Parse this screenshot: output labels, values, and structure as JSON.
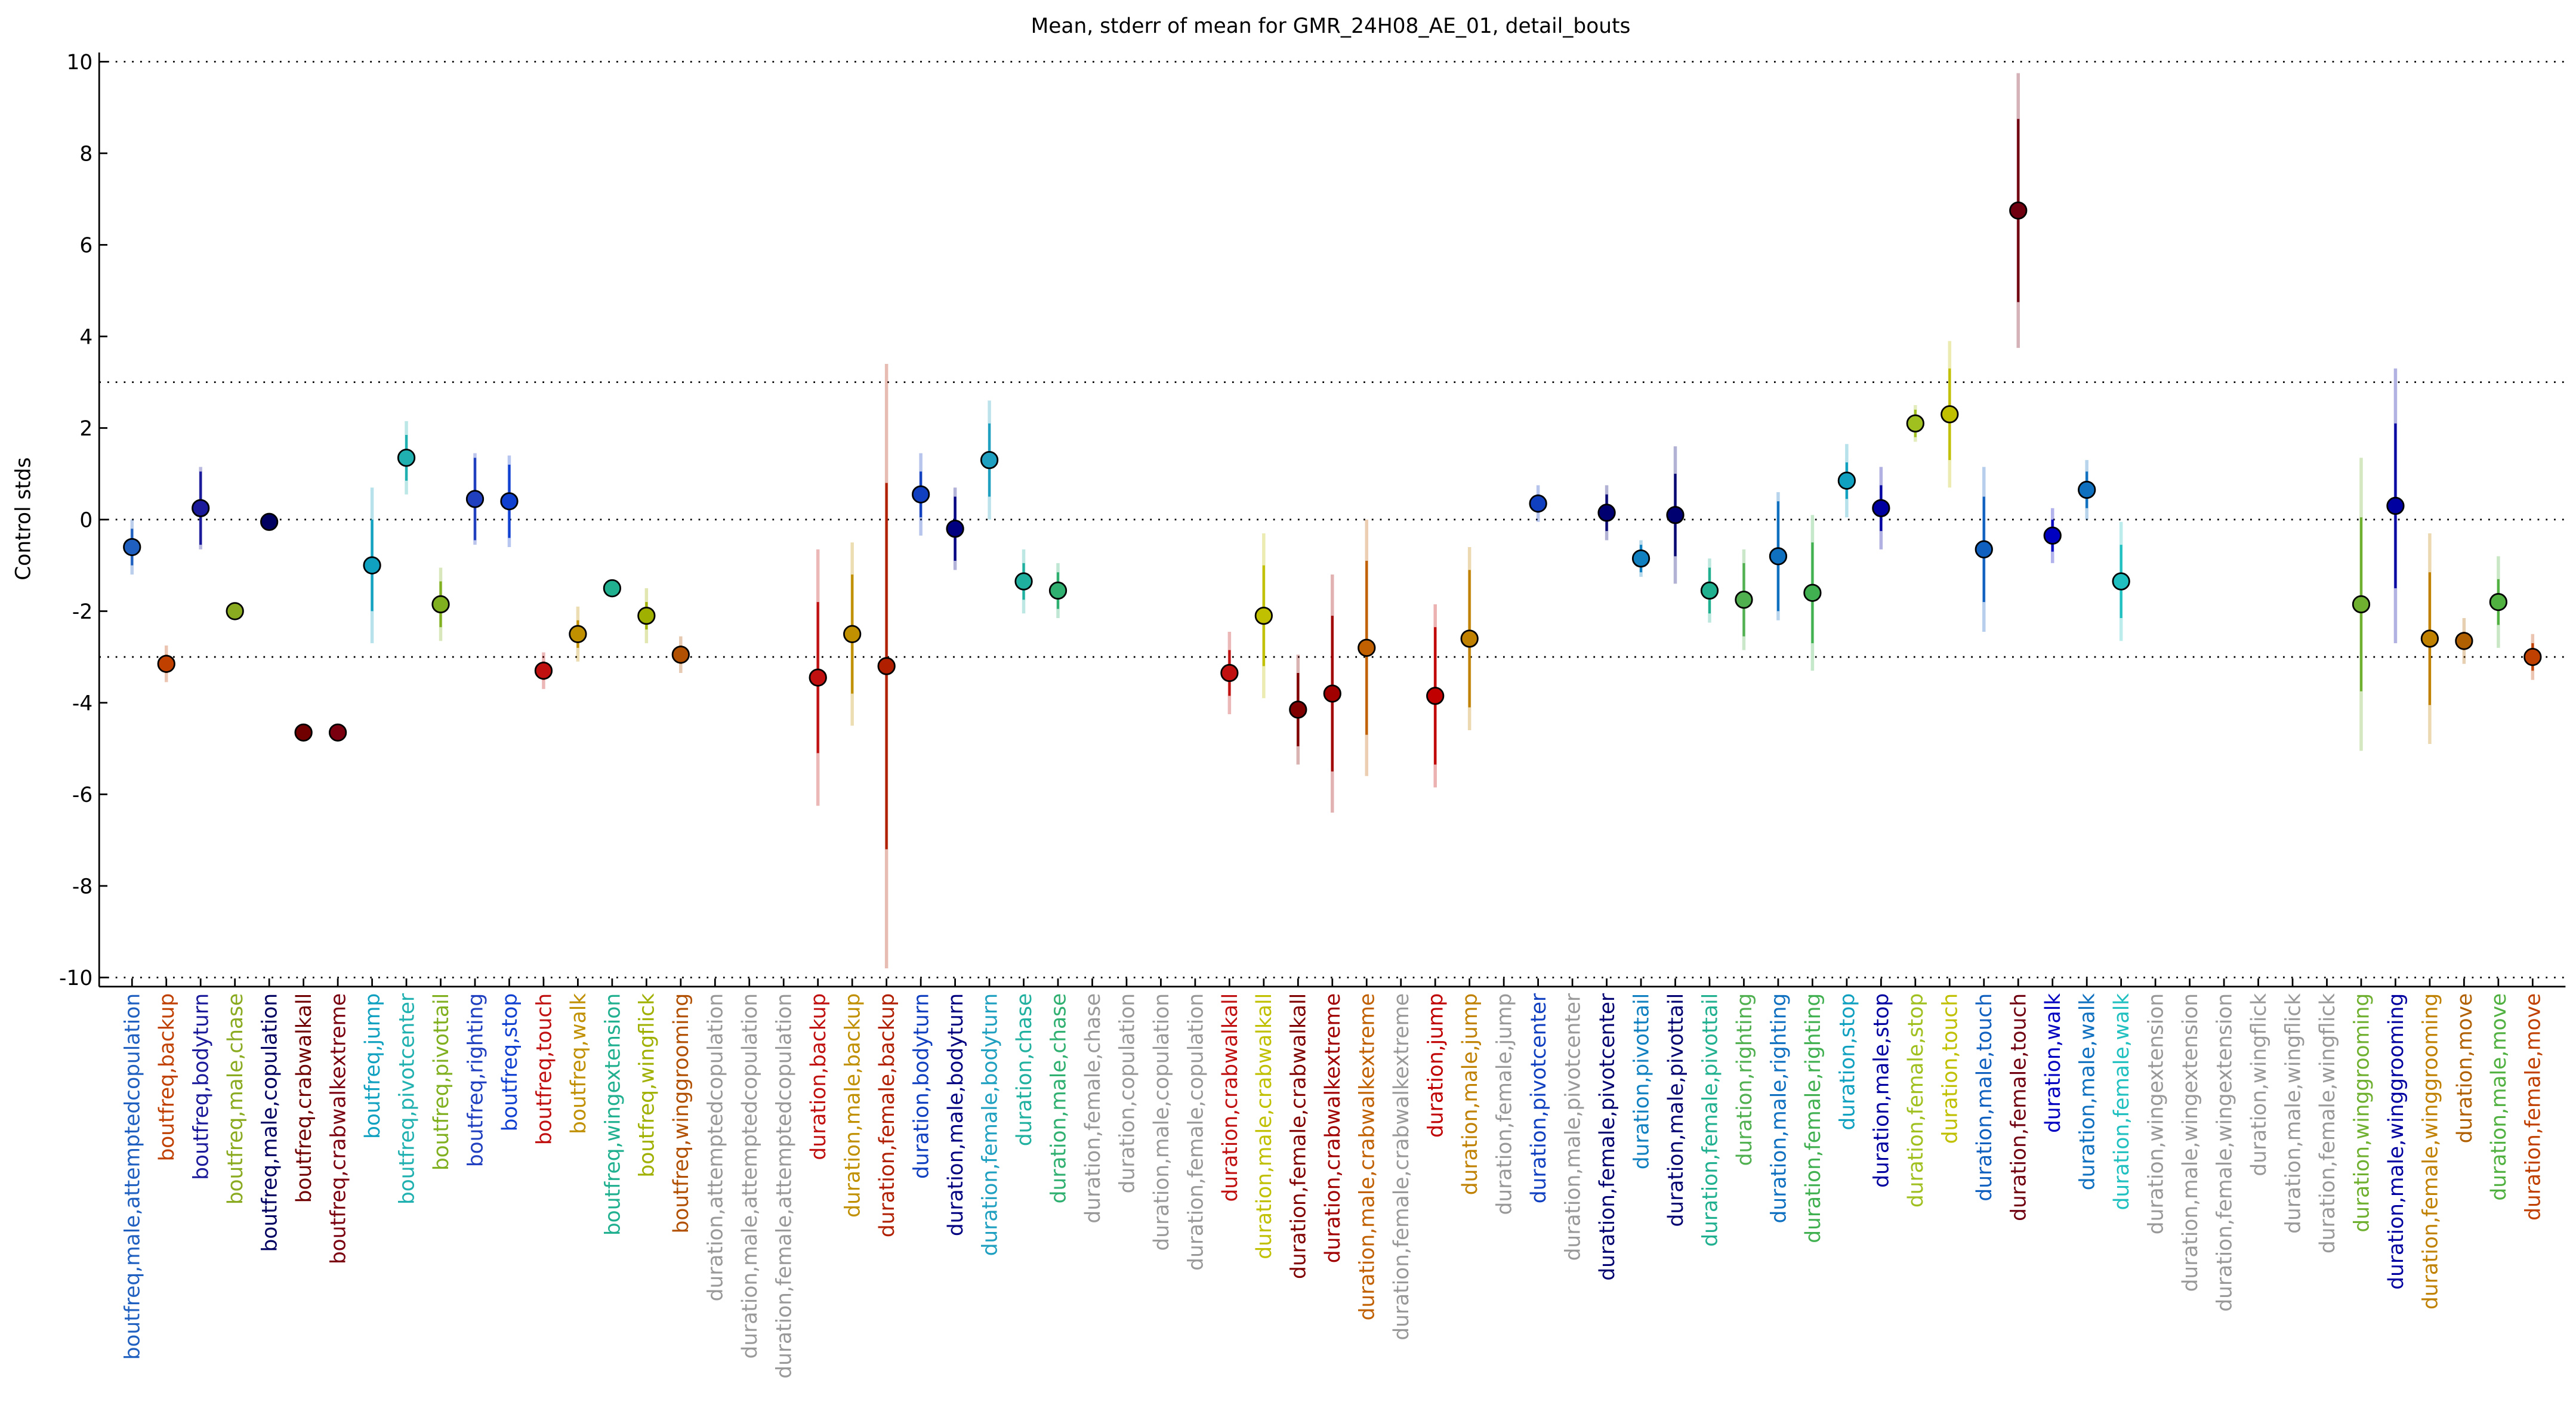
{
  "chart_data": {
    "type": "errorbar",
    "title": "Mean, stderr of mean for GMR_24H08_AE_01, detail_bouts",
    "y_label": "Control stds",
    "categories": [
      "boutfreq,male,attemptedcopulation",
      "boutfreq,backup",
      "boutfreq,bodyturn",
      "boutfreq,male,chase",
      "boutfreq,male,copulation",
      "boutfreq,crabwalkall",
      "boutfreq,crabwalkextreme",
      "boutfreq,jump",
      "boutfreq,pivotcenter",
      "boutfreq,pivottail",
      "boutfreq,righting",
      "boutfreq,stop",
      "boutfreq,touch",
      "boutfreq,walk",
      "boutfreq,wingextension",
      "boutfreq,wingflick",
      "boutfreq,winggrooming",
      "duration,attemptedcopulation",
      "duration,male,attemptedcopulation",
      "duration,female,attemptedcopulation",
      "duration,backup",
      "duration,male,backup",
      "duration,female,backup",
      "duration,bodyturn",
      "duration,male,bodyturn",
      "duration,female,bodyturn",
      "duration,chase",
      "duration,male,chase",
      "duration,female,chase",
      "duration,copulation",
      "duration,male,copulation",
      "duration,female,copulation",
      "duration,crabwalkall",
      "duration,male,crabwalkall",
      "duration,female,crabwalkall",
      "duration,crabwalkextreme",
      "duration,male,crabwalkextreme",
      "duration,female,crabwalkextreme",
      "duration,jump",
      "duration,male,jump",
      "duration,female,jump",
      "duration,pivotcenter",
      "duration,male,pivotcenter",
      "duration,female,pivotcenter",
      "duration,pivottail",
      "duration,male,pivottail",
      "duration,female,pivottail",
      "duration,righting",
      "duration,male,righting",
      "duration,female,righting",
      "duration,stop",
      "duration,male,stop",
      "duration,female,stop",
      "duration,touch",
      "duration,male,touch",
      "duration,female,touch",
      "duration,walk",
      "duration,male,walk",
      "duration,female,walk",
      "duration,wingextension",
      "duration,male,wingextension",
      "duration,female,wingextension",
      "duration,wingflick",
      "duration,male,wingflick",
      "duration,female,wingflick",
      "duration,winggrooming",
      "duration,male,winggrooming",
      "duration,female,winggrooming",
      "duration,move",
      "duration,male,move",
      "duration,female,move"
    ],
    "values": [
      -0.6,
      -3.15,
      0.25,
      -2.0,
      -0.05,
      -4.65,
      -4.65,
      -1.0,
      1.35,
      -1.85,
      0.45,
      0.4,
      -3.3,
      -2.5,
      -1.5,
      -2.1,
      -2.95,
      null,
      null,
      null,
      -3.45,
      -2.5,
      -3.2,
      0.55,
      -0.2,
      1.3,
      -1.35,
      -1.55,
      null,
      null,
      null,
      null,
      -3.35,
      -2.1,
      -4.15,
      -3.8,
      -2.8,
      null,
      -3.85,
      -2.6,
      null,
      0.35,
      null,
      0.15,
      -0.85,
      0.1,
      -1.55,
      -1.75,
      -0.8,
      -1.6,
      0.85,
      0.25,
      2.1,
      2.3,
      -0.65,
      6.75,
      -0.35,
      0.65,
      -1.35,
      null,
      null,
      null,
      null,
      null,
      null,
      -1.85,
      0.3,
      -2.6,
      -2.65,
      -1.8,
      -3.0
    ],
    "errors": [
      0.4,
      0.2,
      0.8,
      0.1,
      0.05,
      0.05,
      0.05,
      1.0,
      0.5,
      0.5,
      0.9,
      0.8,
      0.2,
      0.3,
      0.05,
      0.3,
      0.2,
      null,
      null,
      null,
      1.65,
      1.3,
      4.0,
      0.5,
      0.7,
      0.8,
      0.4,
      0.4,
      null,
      null,
      null,
      null,
      0.5,
      1.1,
      0.8,
      1.7,
      1.9,
      null,
      1.5,
      1.5,
      null,
      0.2,
      null,
      0.4,
      0.3,
      0.9,
      0.5,
      0.8,
      1.2,
      1.1,
      0.4,
      0.5,
      0.3,
      1.0,
      1.15,
      2.0,
      0.35,
      0.4,
      0.8,
      null,
      null,
      null,
      null,
      null,
      null,
      1.9,
      1.8,
      1.45,
      0.2,
      0.5,
      0.3
    ],
    "outer_errors": [
      0.6,
      0.4,
      0.9,
      0.15,
      0.1,
      0.1,
      0.1,
      1.7,
      0.8,
      0.8,
      1.0,
      1.0,
      0.4,
      0.6,
      0.1,
      0.6,
      0.4,
      null,
      null,
      null,
      2.8,
      2.0,
      6.6,
      0.9,
      0.9,
      1.3,
      0.7,
      0.6,
      null,
      null,
      null,
      null,
      0.9,
      1.8,
      1.2,
      2.6,
      2.8,
      null,
      2.0,
      2.0,
      null,
      0.4,
      null,
      0.6,
      0.4,
      1.5,
      0.7,
      1.1,
      1.4,
      1.7,
      0.8,
      0.9,
      0.4,
      1.6,
      1.8,
      3.0,
      0.6,
      0.65,
      1.3,
      null,
      null,
      null,
      null,
      null,
      null,
      3.2,
      3.0,
      2.3,
      0.5,
      1.0,
      0.5
    ],
    "colors": [
      "#1f5fbf",
      "#c04000",
      "#1a1a9a",
      "#8aaa20",
      "#000060",
      "#700000",
      "#7a0010",
      "#10a0c0",
      "#20b0b0",
      "#80b020",
      "#2040c0",
      "#1040d0",
      "#c01010",
      "#c09000",
      "#20b090",
      "#a0b000",
      "#b05000",
      "#999999",
      "#999999",
      "#999999",
      "#c01010",
      "#c09000",
      "#b02000",
      "#1040c0",
      "#000080",
      "#20a0c0",
      "#20b0a0",
      "#30b070",
      "#999999",
      "#999999",
      "#999999",
      "#999999",
      "#c01010",
      "#c0c000",
      "#800000",
      "#a00000",
      "#c06000",
      "#999999",
      "#c00000",
      "#c08000",
      "#999999",
      "#1040c0",
      "#999999",
      "#000070",
      "#1080c0",
      "#000070",
      "#20b090",
      "#50b050",
      "#1070c0",
      "#40b050",
      "#10a0c0",
      "#0000a0",
      "#a0c020",
      "#c0c000",
      "#1060c0",
      "#700010",
      "#0000c0",
      "#1070c0",
      "#20c0c0",
      "#999999",
      "#999999",
      "#999999",
      "#999999",
      "#999999",
      "#999999",
      "#70b030",
      "#0000a0",
      "#c08000",
      "#b06000",
      "#50b040",
      "#c04000"
    ],
    "ylim": [
      -10.2,
      10.2
    ],
    "yticks": [
      -10,
      -8,
      -6,
      -4,
      -2,
      0,
      2,
      4,
      6,
      8,
      10
    ],
    "hlines": [
      10,
      3,
      0,
      -3,
      -10
    ]
  }
}
